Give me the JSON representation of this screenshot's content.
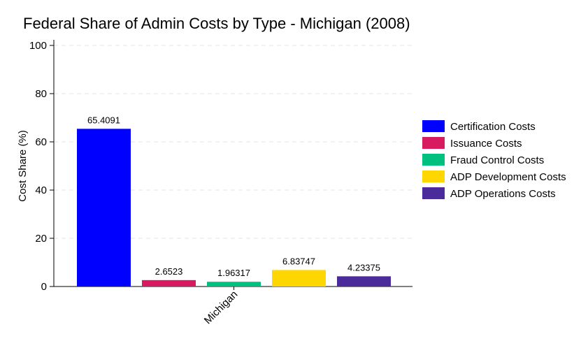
{
  "chart_data": {
    "type": "bar",
    "title": "Federal Share of Admin Costs by Type - Michigan (2008)",
    "xlabel": "",
    "ylabel": "Cost Share (%)",
    "ylim": [
      0,
      100
    ],
    "yticks": [
      "0",
      "20",
      "40",
      "60",
      "80",
      "100"
    ],
    "categories": [
      "Michigan"
    ],
    "grid": "horizontal dashed",
    "legend_position": "right",
    "series": [
      {
        "name": "Certification Costs",
        "values": [
          65.4091
        ],
        "label": "65.4091",
        "color": "#0000ff"
      },
      {
        "name": "Issuance Costs",
        "values": [
          2.6523
        ],
        "label": "2.6523",
        "color": "#d81b60"
      },
      {
        "name": "Fraud Control Costs",
        "values": [
          1.96317
        ],
        "label": "1.96317",
        "color": "#00c080"
      },
      {
        "name": "ADP Development Costs",
        "values": [
          6.83747
        ],
        "label": "6.83747",
        "color": "#ffd700"
      },
      {
        "name": "ADP Operations Costs",
        "values": [
          4.23375
        ],
        "label": "4.23375",
        "color": "#4b2a9c"
      }
    ]
  }
}
